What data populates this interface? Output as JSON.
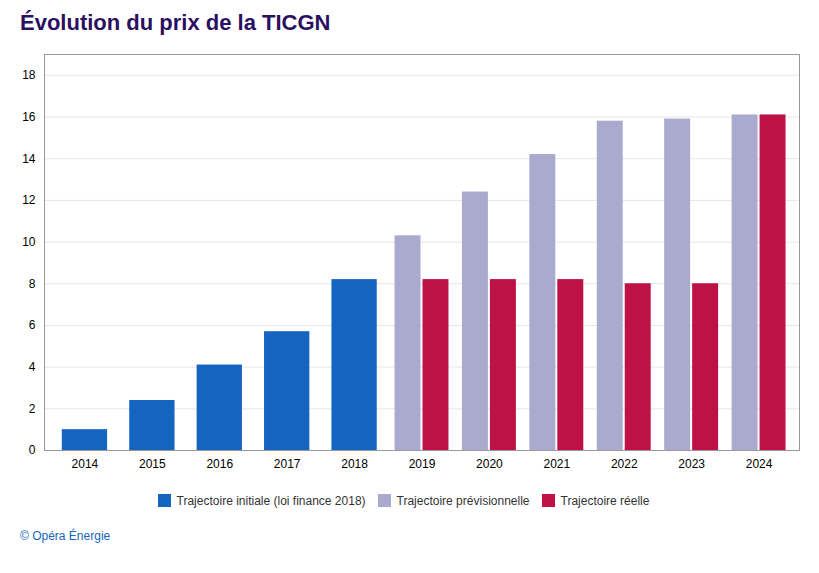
{
  "chart_data": {
    "type": "bar",
    "title": "Évolution du prix de la TICGN",
    "caption": "© Opéra Énergie",
    "categories": [
      "2014",
      "2015",
      "2016",
      "2017",
      "2018",
      "2019",
      "2020",
      "2021",
      "2022",
      "2023",
      "2024"
    ],
    "series": [
      {
        "name": "Trajectoire initiale (loi finance 2018)",
        "color": "#1565C0",
        "values": [
          1.0,
          2.4,
          4.1,
          5.7,
          8.2,
          null,
          null,
          null,
          null,
          null,
          null
        ]
      },
      {
        "name": "Trajectoire prévisionnelle",
        "color": "#AAAACF",
        "values": [
          null,
          null,
          null,
          null,
          null,
          10.3,
          12.4,
          14.2,
          15.8,
          15.9,
          16.1
        ]
      },
      {
        "name": "Trajectoire réelle",
        "color": "#BE1145",
        "values": [
          null,
          null,
          null,
          null,
          null,
          8.2,
          8.2,
          8.2,
          8.0,
          8.0,
          16.1
        ]
      }
    ],
    "ylim": [
      0,
      19
    ],
    "yticks": [
      0,
      2,
      4,
      6,
      8,
      10,
      12,
      14,
      16,
      18
    ],
    "grid": true,
    "legend": "bottom"
  }
}
